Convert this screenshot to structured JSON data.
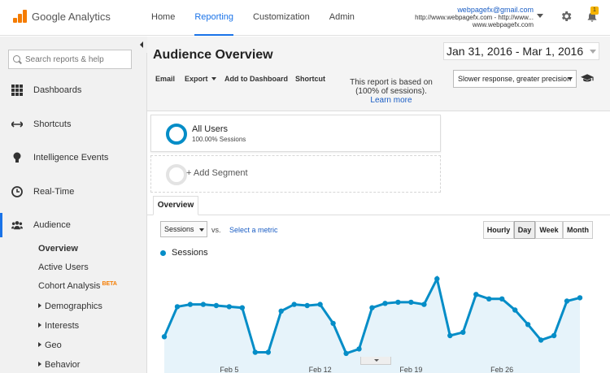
{
  "app": {
    "title": "Google Analytics"
  },
  "topnav": {
    "items": [
      "Home",
      "Reporting",
      "Customization",
      "Admin"
    ],
    "active": "Reporting"
  },
  "account": {
    "email": "webpagefx@gmail.com",
    "line2": "http://www.webpagefx.com - http://www...",
    "line3": "www.webpagefx.com",
    "notifications": "1"
  },
  "sidebar": {
    "search_placeholder": "Search reports & help",
    "items": [
      {
        "label": "Dashboards",
        "icon": "grid-icon"
      },
      {
        "label": "Shortcuts",
        "icon": "shortcut-arrows-icon"
      },
      {
        "label": "Intelligence Events",
        "icon": "lightbulb-icon"
      },
      {
        "label": "Real-Time",
        "icon": "clock-icon"
      },
      {
        "label": "Audience",
        "icon": "people-icon"
      }
    ],
    "audience_sub": {
      "overview": "Overview",
      "active_users": "Active Users",
      "cohort": "Cohort Analysis",
      "beta": "BETA",
      "demographics": "Demographics",
      "interests": "Interests",
      "geo": "Geo",
      "behavior": "Behavior"
    }
  },
  "main": {
    "title": "Audience Overview",
    "date_range": "Jan 31, 2016 - Mar 1, 2016",
    "toolbar": {
      "email": "Email",
      "export": "Export",
      "add_dashboard": "Add to Dashboard",
      "shortcut": "Shortcut"
    },
    "sampling_note": {
      "line1": "This report is based on",
      "line2": "(100% of sessions).",
      "learn_more": "Learn more"
    },
    "sampling_select": "Slower response, greater precision",
    "segments": [
      {
        "name": "All Users",
        "detail": "100.00% Sessions"
      },
      {
        "name": "+ Add Segment"
      }
    ],
    "tab": "Overview",
    "metric_select": "Sessions",
    "vs": "vs.",
    "select_metric": "Select a metric",
    "granularity": [
      "Hourly",
      "Day",
      "Week",
      "Month"
    ],
    "granularity_active": "Day",
    "legend": "Sessions",
    "colors": {
      "series": "#058dc7",
      "area": "#e6f3fa",
      "accent": "#1a73e8",
      "brand": "#f57c00"
    }
  },
  "chart_data": {
    "type": "line",
    "x_ticks": [
      "Feb 5",
      "Feb 12",
      "Feb 19",
      "Feb 26"
    ],
    "series": [
      {
        "name": "Sessions",
        "values": [
          0.45,
          0.72,
          0.74,
          0.74,
          0.73,
          0.72,
          0.71,
          0.31,
          0.31,
          0.68,
          0.74,
          0.73,
          0.74,
          0.57,
          0.3,
          0.34,
          0.71,
          0.75,
          0.76,
          0.76,
          0.74,
          0.97,
          0.46,
          0.49,
          0.83,
          0.79,
          0.79,
          0.69,
          0.56,
          0.42,
          0.46,
          0.77,
          0.8
        ]
      }
    ],
    "grid": false,
    "legend": "top-left"
  }
}
